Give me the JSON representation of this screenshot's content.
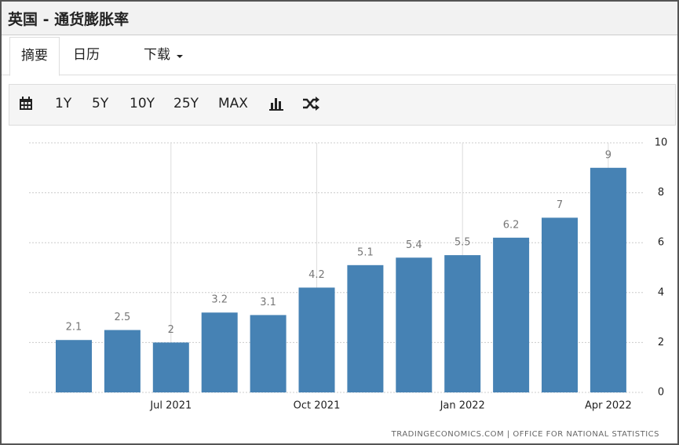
{
  "header": {
    "title": "英国 - 通货膨胀率"
  },
  "tabs": [
    "摘要",
    "日历",
    "下载"
  ],
  "toolbar": {
    "ranges": [
      "1Y",
      "5Y",
      "10Y",
      "25Y",
      "MAX"
    ]
  },
  "chart_data": {
    "type": "bar",
    "categories": [
      null,
      null,
      "Jul 2021",
      null,
      null,
      "Oct 2021",
      null,
      null,
      "Jan 2022",
      null,
      null,
      "Apr 2022"
    ],
    "values": [
      2.1,
      2.5,
      2,
      3.2,
      3.1,
      4.2,
      5.1,
      5.4,
      5.5,
      6.2,
      7,
      9
    ],
    "color": "#4682b4",
    "ylim": [
      0,
      10
    ],
    "yticks": [
      0,
      2,
      4,
      6,
      8,
      10
    ],
    "grid": true,
    "source": "TRADINGECONOMICS.COM | OFFICE FOR NATIONAL STATISTICS"
  }
}
